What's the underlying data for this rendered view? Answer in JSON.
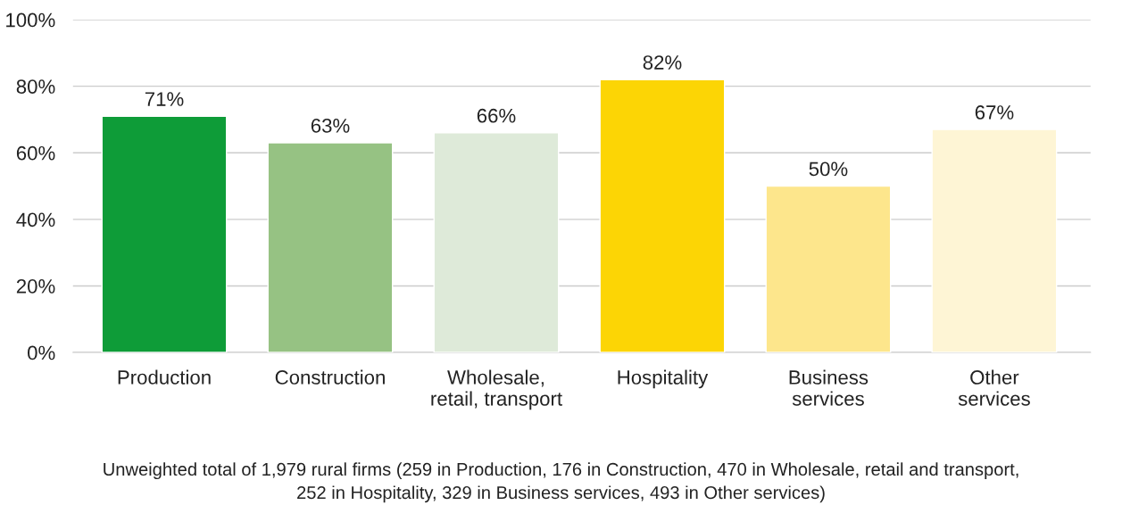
{
  "chart_data": {
    "type": "bar",
    "categories": [
      "Production",
      "Construction",
      "Wholesale,\nretail, transport",
      "Hospitality",
      "Business\nservices",
      "Other\nservices"
    ],
    "values": [
      71,
      63,
      66,
      82,
      50,
      67
    ],
    "colors": [
      "#0e9c38",
      "#96c283",
      "#deead9",
      "#fcd505",
      "#fde68c",
      "#fef5d5"
    ],
    "value_labels": [
      "71%",
      "63%",
      "66%",
      "82%",
      "50%",
      "67%"
    ],
    "ylim": [
      0,
      100
    ],
    "yticks": [
      {
        "value": 0,
        "label": "0%"
      },
      {
        "value": 20,
        "label": "20%"
      },
      {
        "value": 40,
        "label": "40%"
      },
      {
        "value": 60,
        "label": "60%"
      },
      {
        "value": 80,
        "label": "80%"
      },
      {
        "value": 100,
        "label": "100%"
      }
    ],
    "grid": "y",
    "annotations": [
      "Unweighted total of 1,979 rural firms (259 in Production, 176 in Construction, 470 in Wholesale, retail and transport,\n252 in Hospitality, 329 in Business services, 493 in Other services)"
    ]
  }
}
